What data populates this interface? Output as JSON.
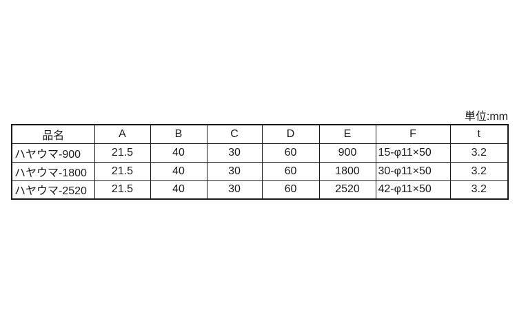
{
  "unit_label": "単位:mm",
  "colors": {
    "border": "#1a1a1a",
    "text": "#1a1a1a",
    "background": "#ffffff"
  },
  "table": {
    "headers": [
      "品名",
      "A",
      "B",
      "C",
      "D",
      "E",
      "F",
      "t"
    ],
    "rows": [
      [
        "ハヤウマ-900",
        "21.5",
        "40",
        "30",
        "60",
        "900",
        "15-φ11×50",
        "3.2"
      ],
      [
        "ハヤウマ-1800",
        "21.5",
        "40",
        "30",
        "60",
        "1800",
        "30-φ11×50",
        "3.2"
      ],
      [
        "ハヤウマ-2520",
        "21.5",
        "40",
        "30",
        "60",
        "2520",
        "42-φ11×50",
        "3.2"
      ]
    ]
  }
}
